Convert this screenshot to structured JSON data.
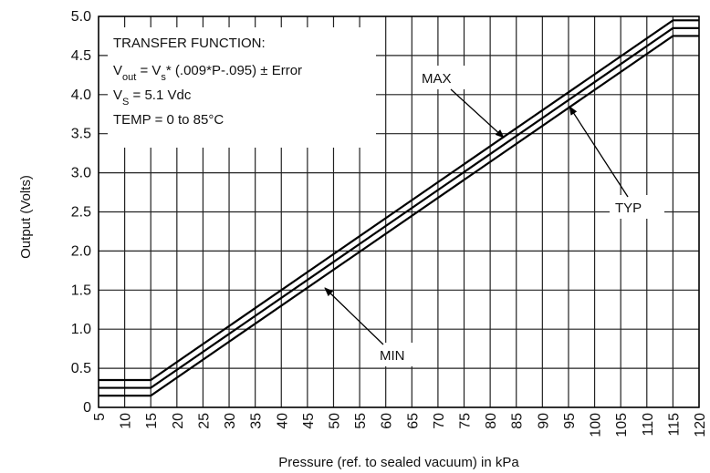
{
  "chart_data": {
    "type": "line",
    "xlabel": "Pressure (ref. to sealed vacuum) in kPa",
    "ylabel": "Output (Volts)",
    "x": [
      5,
      15,
      115,
      120
    ],
    "series": [
      {
        "name": "MAX",
        "color": "#000000",
        "values": [
          0.35,
          0.35,
          4.95,
          4.95
        ]
      },
      {
        "name": "TYP",
        "color": "#000000",
        "values": [
          0.25,
          0.25,
          4.85,
          4.85
        ]
      },
      {
        "name": "MIN",
        "color": "#000000",
        "values": [
          0.15,
          0.15,
          4.75,
          4.75
        ]
      }
    ],
    "xlim": [
      5,
      120
    ],
    "xticks": [
      5,
      10,
      15,
      20,
      25,
      30,
      35,
      40,
      45,
      50,
      55,
      60,
      65,
      70,
      75,
      80,
      85,
      90,
      95,
      100,
      105,
      110,
      115,
      120
    ],
    "ylim": [
      0,
      5
    ],
    "yticks": [
      0,
      0.5,
      {
        "value": 1,
        "label": "1.0"
      },
      1.5,
      {
        "value": 2,
        "label": "2.0"
      },
      2.5,
      {
        "value": 3,
        "label": "3.0"
      },
      3.5,
      {
        "value": 4,
        "label": "4.0"
      },
      4.5,
      {
        "value": 5,
        "label": "5.0"
      }
    ],
    "grid": true,
    "annotation": {
      "title": "TRANSFER FUNCTION:",
      "lines": [
        [
          {
            "text": "V"
          },
          {
            "text": "out",
            "sub": true
          },
          {
            "text": " = V"
          },
          {
            "text": "s",
            "sub": true
          },
          {
            "text": "* (.009*P-.095) ± Error"
          }
        ],
        [
          {
            "text": "V"
          },
          {
            "text": "S",
            "sub": true
          },
          {
            "text": " = 5.1 Vdc"
          }
        ],
        [
          {
            "text": "TEMP = 0 to 85°C"
          }
        ]
      ]
    }
  }
}
